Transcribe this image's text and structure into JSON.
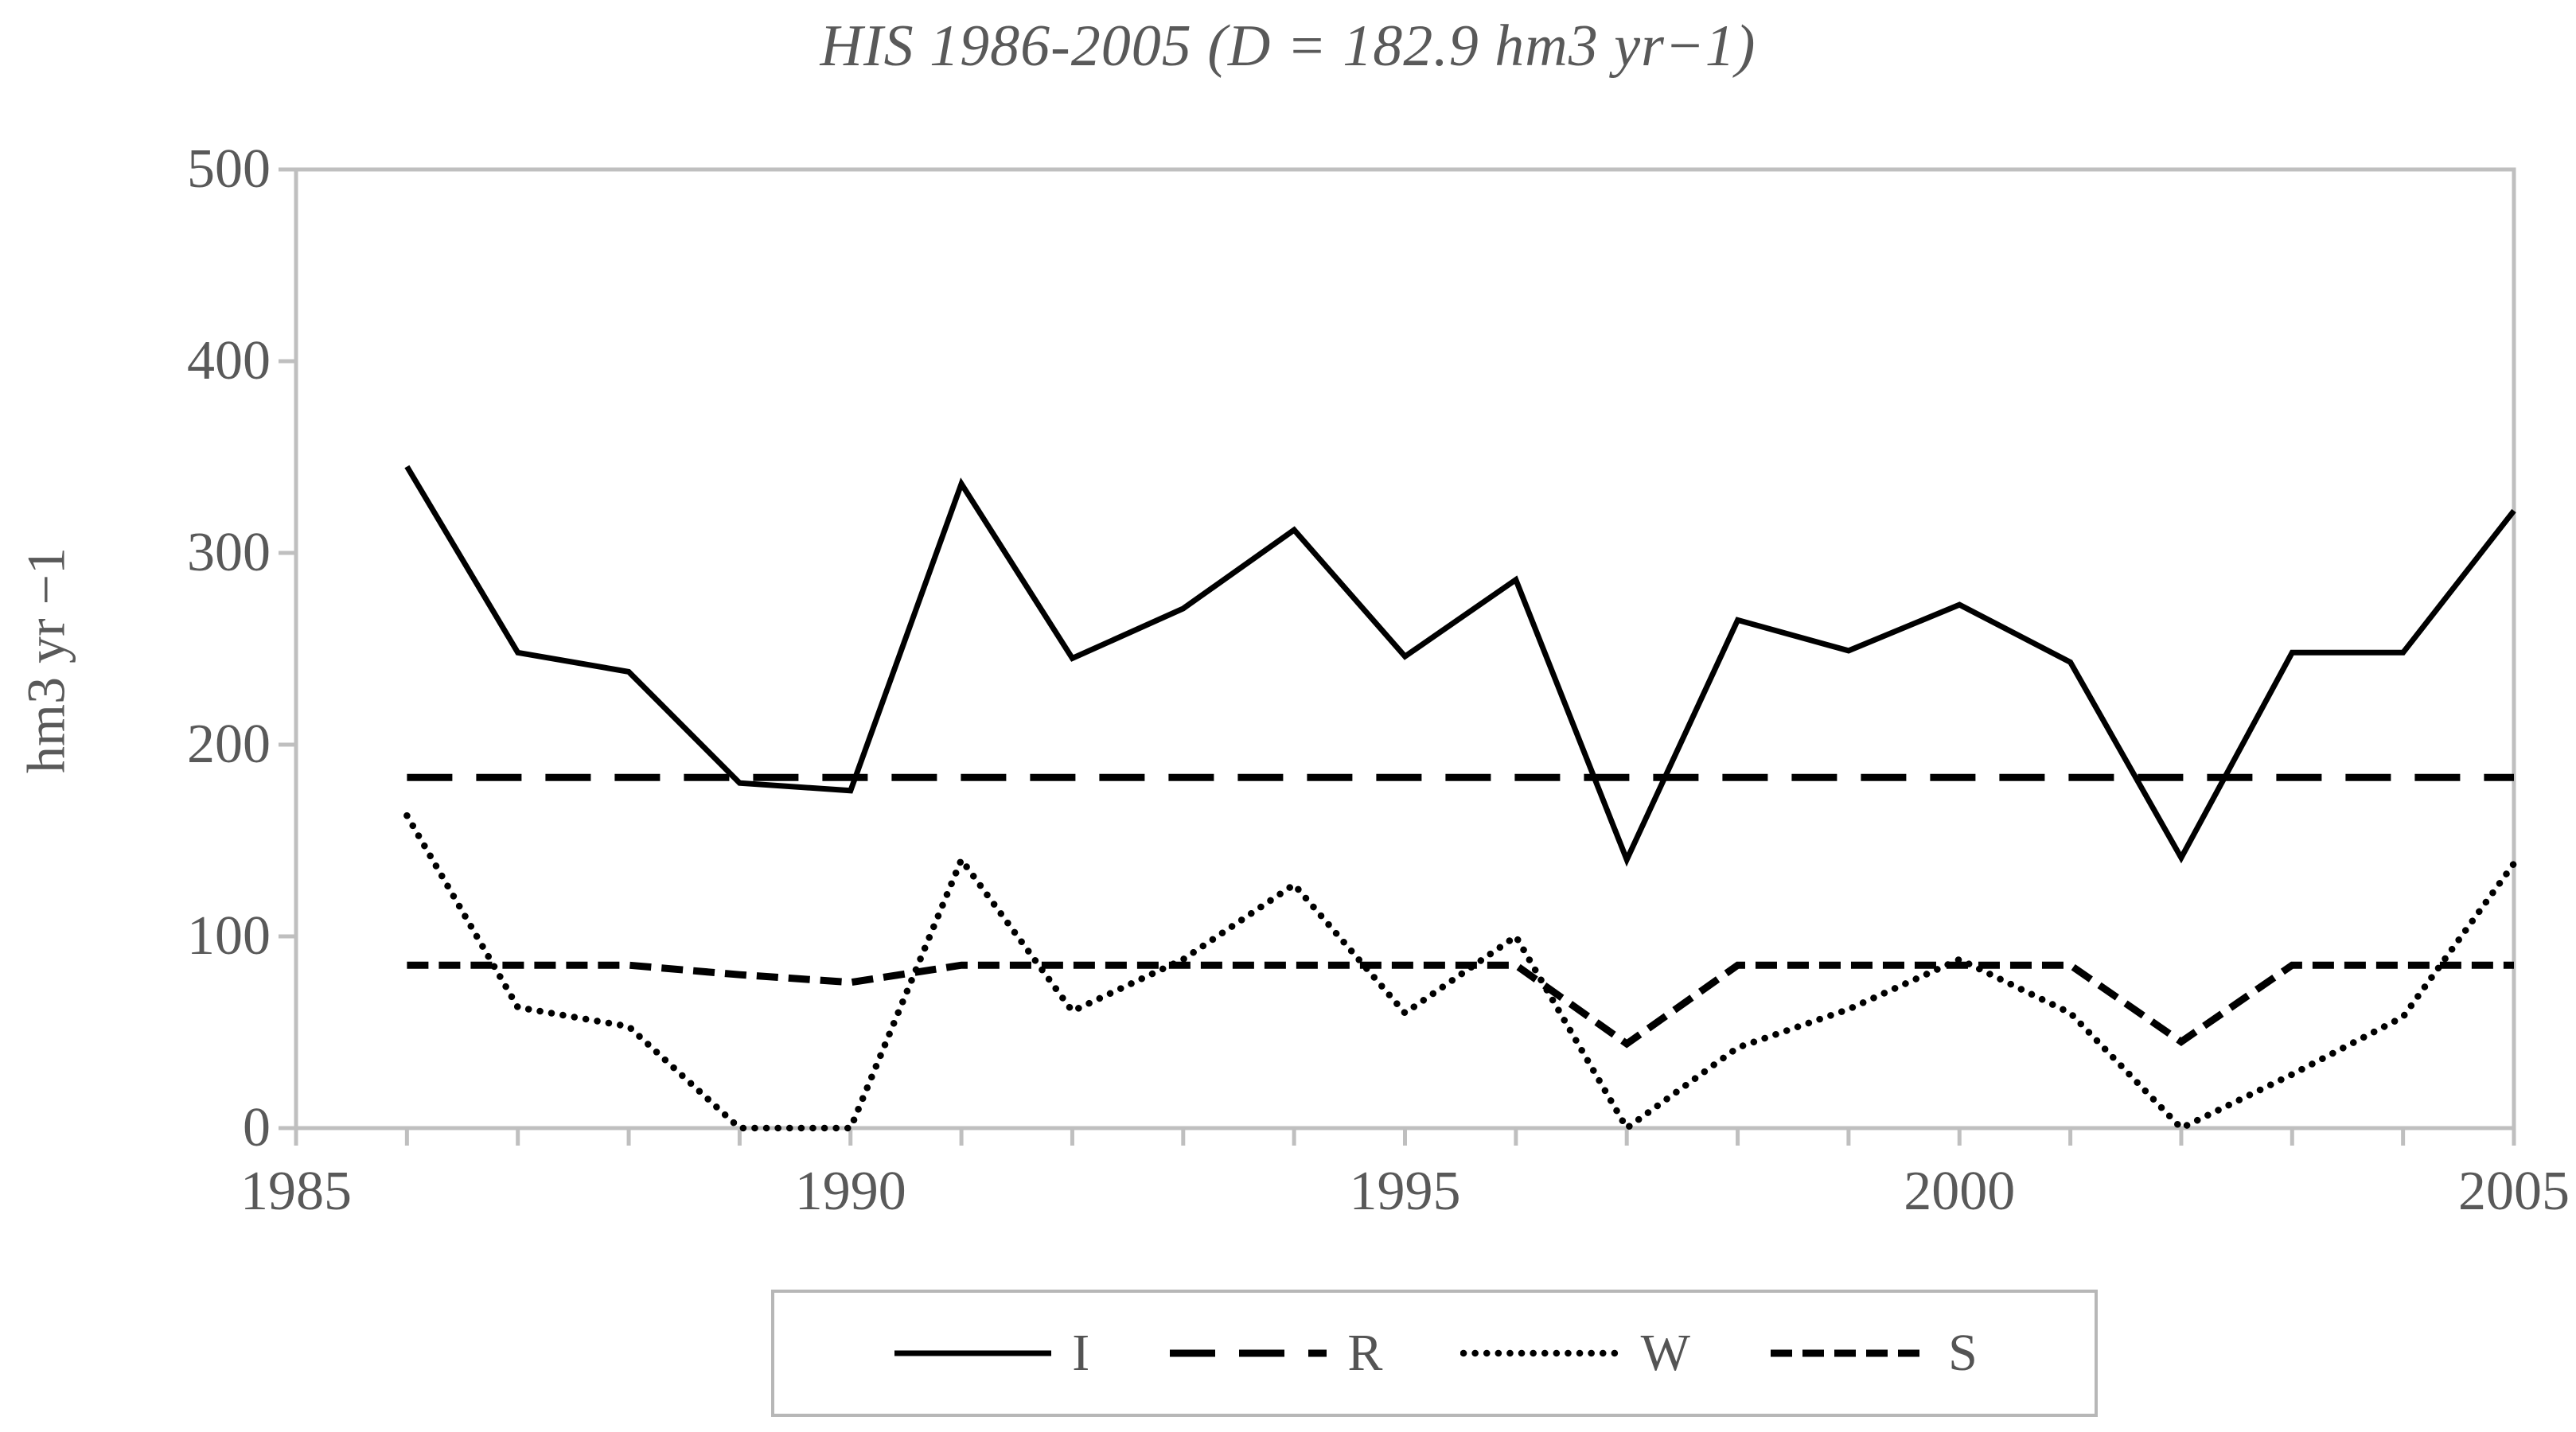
{
  "title": "HIS 1986-2005 (D = 182.9 hm3 yr−1)",
  "y_axis": {
    "label": "hm3 yr −1",
    "tick_labels": [
      "500",
      "400",
      "300",
      "200",
      "100",
      "0"
    ],
    "min": 0,
    "max": 500
  },
  "x_axis": {
    "tick_labels": [
      "1985",
      "1990",
      "1995",
      "2000",
      "2005"
    ],
    "min": 1985,
    "max": 2005,
    "minor_tick_every": 1
  },
  "legend": {
    "items": [
      {
        "label": "I",
        "style": "solid"
      },
      {
        "label": "R",
        "style": "long-dash"
      },
      {
        "label": "W",
        "style": "dotted"
      },
      {
        "label": "S",
        "style": "short-dash"
      }
    ]
  },
  "colors": {
    "series": "#000000",
    "axis": "#bfbfbf",
    "text": "#595959"
  },
  "chart_data": {
    "type": "line",
    "title": "HIS 1986-2005 (D = 182.9 hm3 yr−1)",
    "ylabel": "hm3 yr −1",
    "xlabel": "",
    "xlim": [
      1985,
      2005
    ],
    "ylim": [
      0,
      500
    ],
    "grid": false,
    "legend_position": "bottom",
    "x": [
      1986,
      1987,
      1988,
      1989,
      1990,
      1991,
      1992,
      1993,
      1994,
      1995,
      1996,
      1997,
      1998,
      1999,
      2000,
      2001,
      2002,
      2003,
      2004,
      2005
    ],
    "series": [
      {
        "name": "I",
        "style": "solid",
        "values": [
          345,
          248,
          238,
          180,
          176,
          336,
          245,
          271,
          312,
          246,
          286,
          140,
          265,
          249,
          273,
          243,
          141,
          248,
          248,
          322
        ]
      },
      {
        "name": "R",
        "style": "long-dash",
        "values": [
          182.9,
          182.9,
          182.9,
          182.9,
          182.9,
          182.9,
          182.9,
          182.9,
          182.9,
          182.9,
          182.9,
          182.9,
          182.9,
          182.9,
          182.9,
          182.9,
          182.9,
          182.9,
          182.9,
          182.9
        ]
      },
      {
        "name": "W",
        "style": "dotted",
        "values": [
          163,
          63,
          53,
          0,
          0,
          140,
          61,
          88,
          127,
          60,
          100,
          0,
          42,
          62,
          88,
          60,
          0,
          28,
          58,
          138
        ]
      },
      {
        "name": "S",
        "style": "short-dash",
        "values": [
          85,
          85,
          85,
          80,
          76,
          85,
          85,
          85,
          85,
          85,
          85,
          44,
          85,
          85,
          85,
          85,
          45,
          85,
          85,
          85
        ]
      }
    ]
  }
}
